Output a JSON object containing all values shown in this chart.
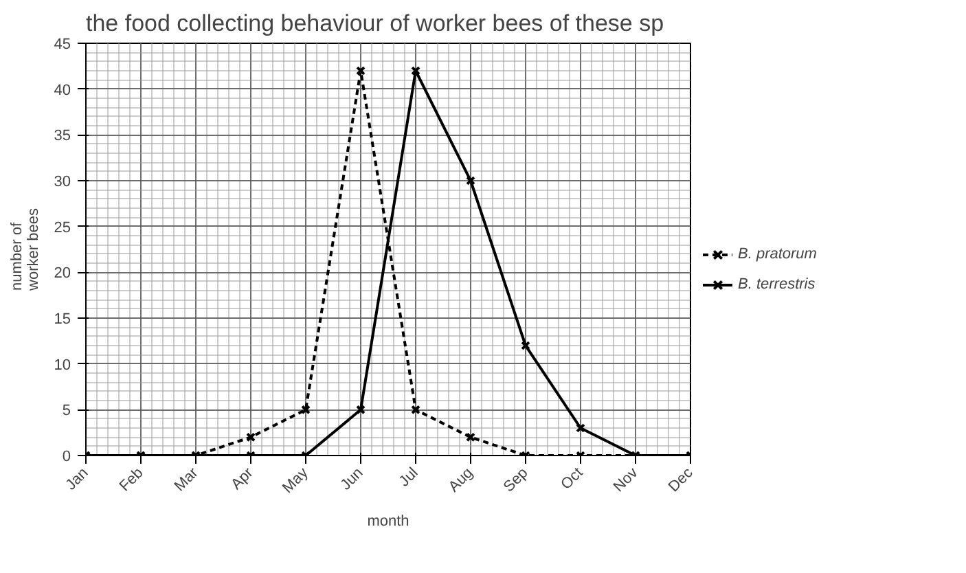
{
  "chart_data": {
    "type": "line",
    "title": "the food collecting behaviour of worker bees of these sp",
    "xlabel": "month",
    "ylabel": "number of\nworker bees",
    "categories": [
      "Jan",
      "Feb",
      "Mar",
      "Apr",
      "May",
      "Jun",
      "Jul",
      "Aug",
      "Sep",
      "Oct",
      "Nov",
      "Dec"
    ],
    "series": [
      {
        "name": "B. pratorum",
        "color": "#000000",
        "line_style": "dashed",
        "values": [
          0,
          0,
          0,
          2,
          5,
          42,
          5,
          2,
          0,
          0,
          0,
          0
        ]
      },
      {
        "name": "B. terrestris",
        "color": "#000000",
        "line_style": "solid",
        "values": [
          0,
          0,
          0,
          0,
          0,
          5,
          42,
          30,
          12,
          3,
          0,
          0
        ]
      }
    ],
    "ylim": [
      0,
      45
    ],
    "yticks": [
      0,
      5,
      10,
      15,
      20,
      25,
      30,
      35,
      40,
      45
    ],
    "grid": true,
    "legend": "right",
    "marker": "cross"
  }
}
